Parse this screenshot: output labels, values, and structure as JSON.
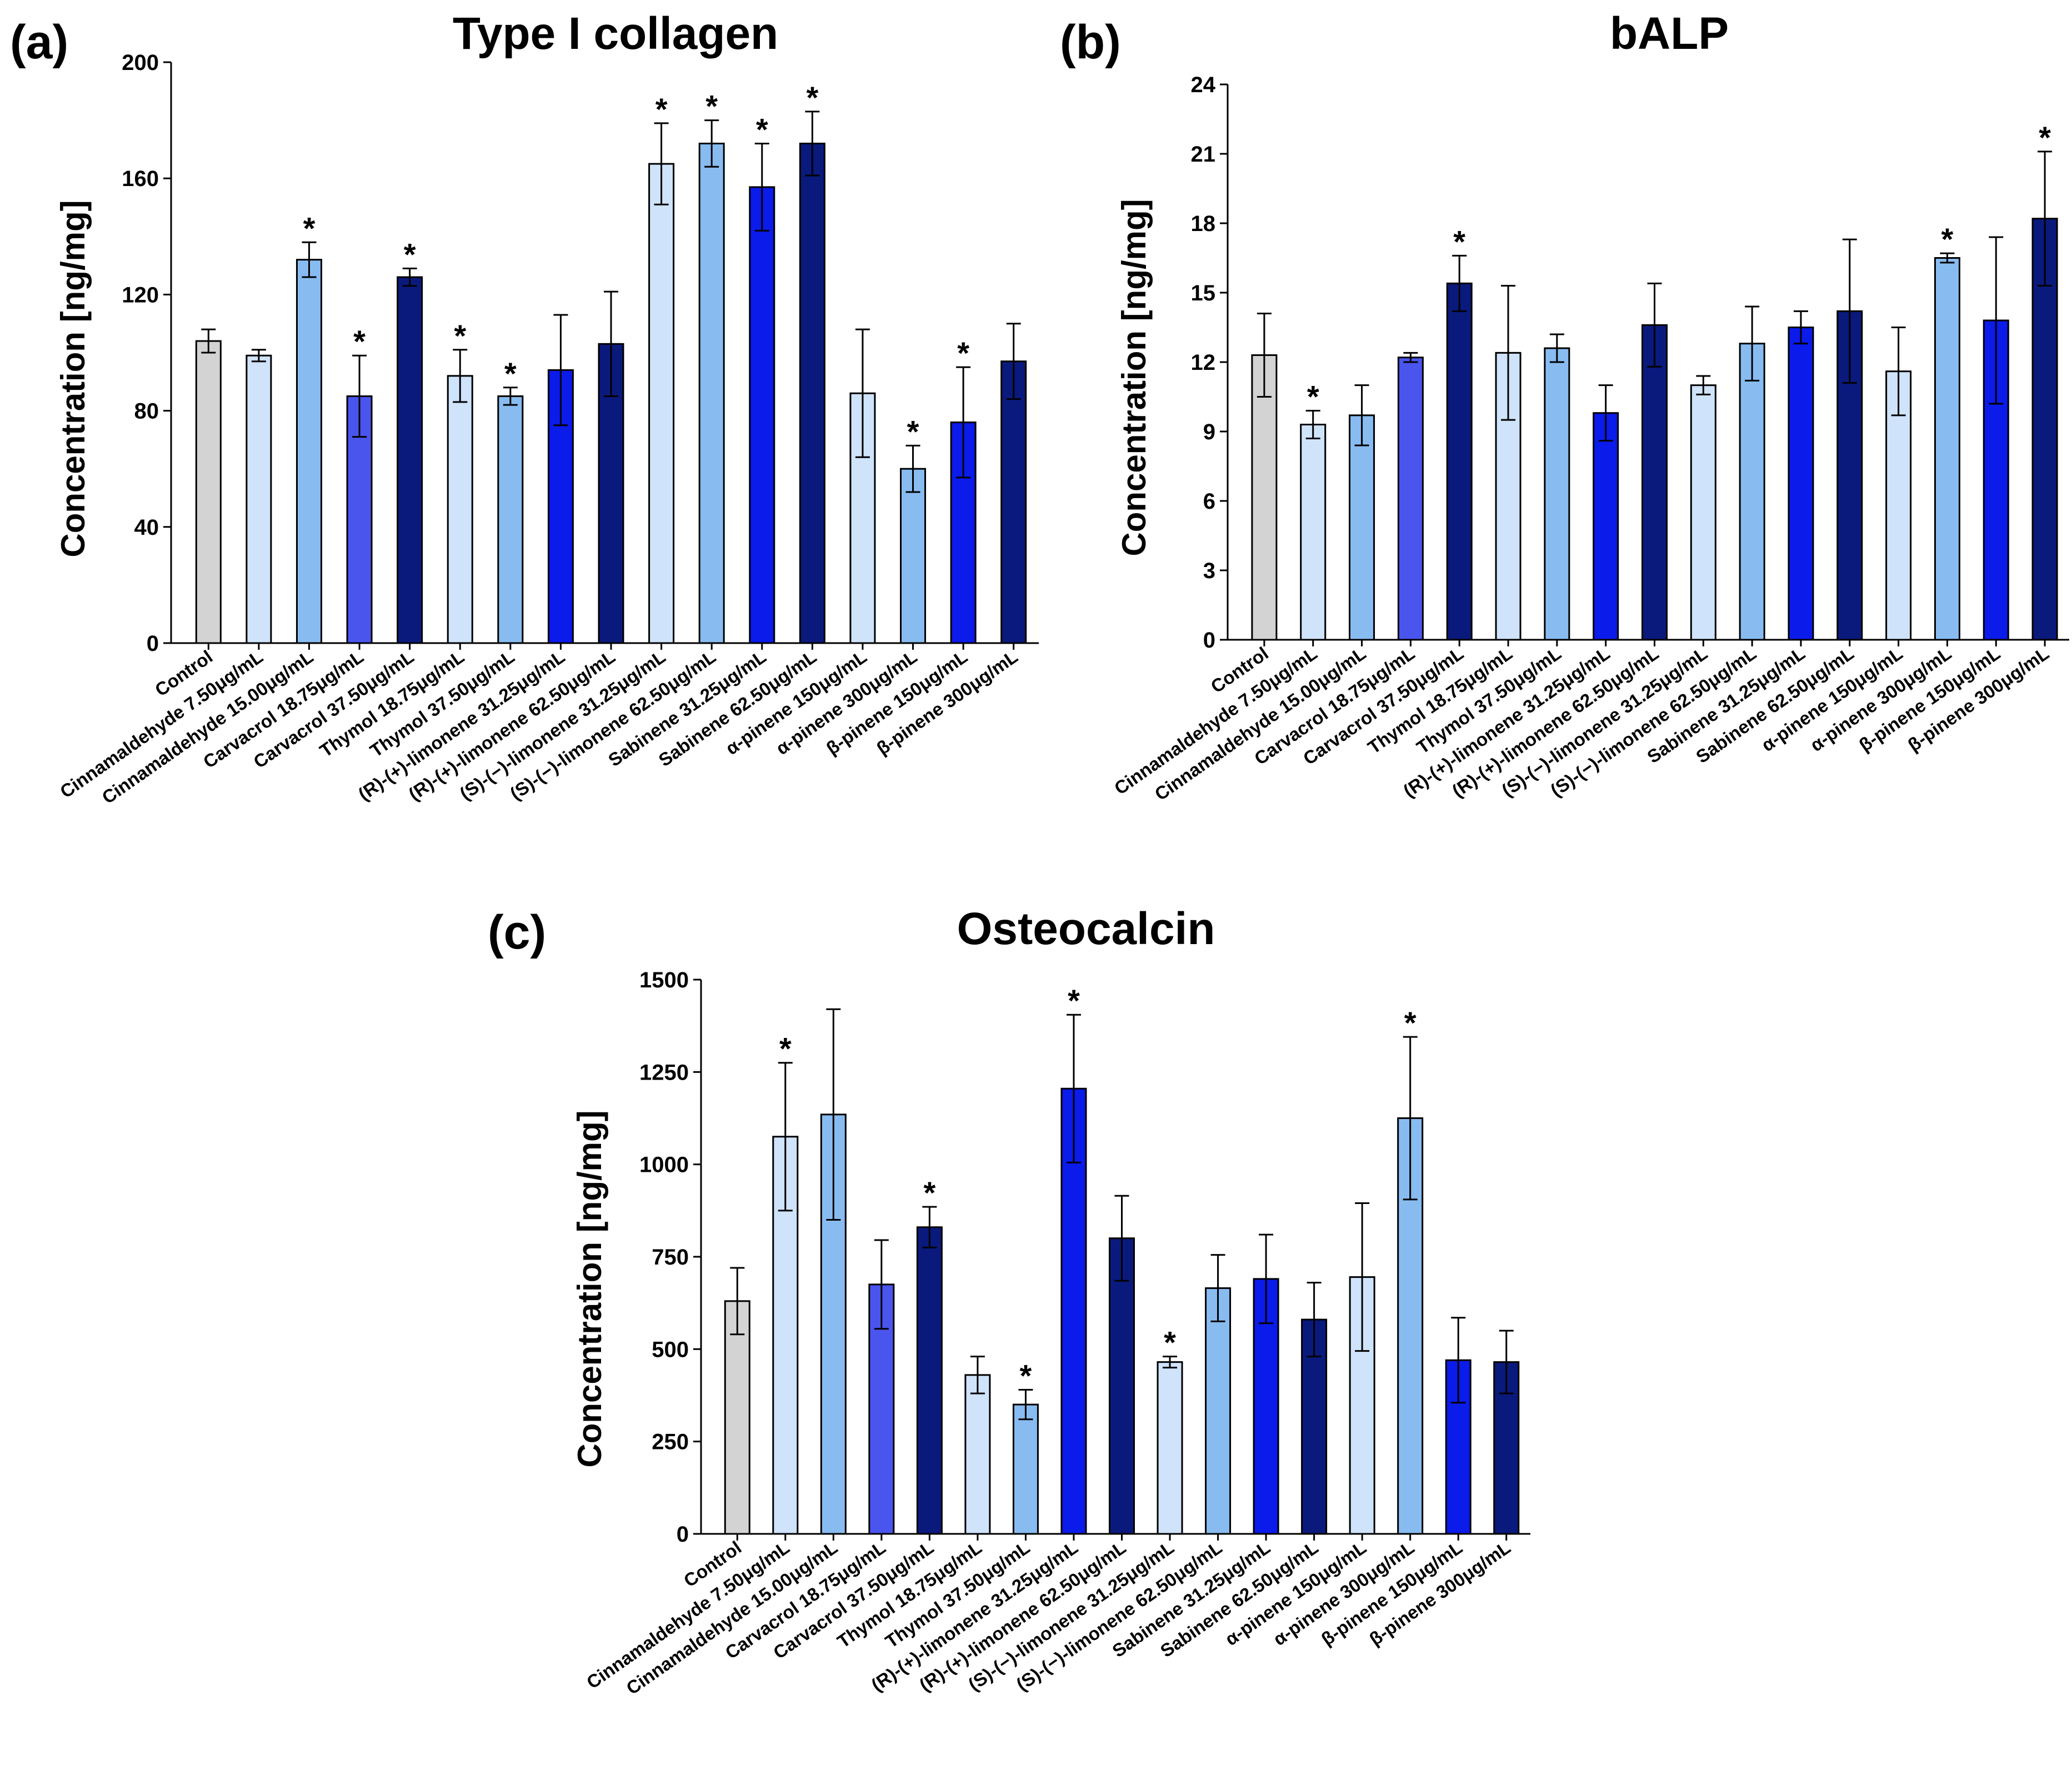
{
  "chart_data": [
    {
      "panel": "(a)",
      "type": "bar",
      "title": "Type I collagen",
      "ylabel": "Concentration [ng/mg]",
      "xlabel": "",
      "ylim": [
        0,
        200
      ],
      "yticks": [
        0,
        40,
        80,
        120,
        160,
        200
      ],
      "categories": [
        "Control",
        "Cinnamaldehyde 7.50μg/mL",
        "Cinnamaldehyde 15.00μg/mL",
        "Carvacrol 18.75μg/mL",
        "Carvacrol 37.50μg/mL",
        "Thymol 18.75μg/mL",
        "Thymol 37.50μg/mL",
        "(R)-(+)-limonene 31.25μg/mL",
        "(R)-(+)-limonene 62.50μg/mL",
        "(S)-(−)-limonene 31.25μg/mL",
        "(S)-(−)-limonene 62.50μg/mL",
        "Sabinene 31.25μg/mL",
        "Sabinene 62.50μg/mL",
        "α-pinene 150μg/mL",
        "α-pinene 300μg/mL",
        "β-pinene 150μg/mL",
        "β-pinene 300μg/mL"
      ],
      "values": [
        104,
        99,
        132,
        85,
        126,
        92,
        85,
        94,
        103,
        165,
        172,
        157,
        172,
        86,
        60,
        76,
        97
      ],
      "errors": [
        4,
        2,
        6,
        14,
        3,
        9,
        3,
        19,
        18,
        14,
        8,
        15,
        11,
        22,
        8,
        19,
        13
      ],
      "significant": [
        false,
        false,
        true,
        true,
        true,
        true,
        true,
        false,
        false,
        true,
        true,
        true,
        true,
        false,
        true,
        true,
        false
      ],
      "colors": [
        "#d3d3d3",
        "#cfe3fb",
        "#88bcf1",
        "#4a55ee",
        "#0a1a7c",
        "#cfe3fb",
        "#88bcf1",
        "#0a1bea",
        "#0a1a7c",
        "#cfe3fb",
        "#88bcf1",
        "#0a1bea",
        "#0a1a7c",
        "#cfe3fb",
        "#88bcf1",
        "#0a1bea",
        "#0a1a7c"
      ]
    },
    {
      "panel": "(b)",
      "type": "bar",
      "title": "bALP",
      "ylabel": "Concentration [ng/mg]",
      "xlabel": "",
      "ylim": [
        0,
        24
      ],
      "yticks": [
        0,
        3,
        6,
        9,
        12,
        15,
        18,
        21,
        24
      ],
      "categories": [
        "Control",
        "Cinnamaldehyde 7.50μg/mL",
        "Cinnamaldehyde 15.00μg/mL",
        "Carvacrol 18.75μg/mL",
        "Carvacrol 37.50μg/mL",
        "Thymol 18.75μg/mL",
        "Thymol 37.50μg/mL",
        "(R)-(+)-limonene 31.25μg/mL",
        "(R)-(+)-limonene 62.50μg/mL",
        "(S)-(−)-limonene 31.25μg/mL",
        "(S)-(−)-limonene 62.50μg/mL",
        "Sabinene 31.25μg/mL",
        "Sabinene 62.50μg/mL",
        "α-pinene 150μg/mL",
        "α-pinene 300μg/mL",
        "β-pinene 150μg/mL",
        "β-pinene 300μg/mL"
      ],
      "values": [
        12.3,
        9.3,
        9.7,
        12.2,
        15.4,
        12.4,
        12.6,
        9.8,
        13.6,
        11.0,
        12.8,
        13.5,
        14.2,
        11.6,
        16.5,
        13.8,
        18.2
      ],
      "errors": [
        1.8,
        0.6,
        1.3,
        0.2,
        1.2,
        2.9,
        0.6,
        1.2,
        1.8,
        0.4,
        1.6,
        0.7,
        3.1,
        1.9,
        0.2,
        3.6,
        2.9
      ],
      "significant": [
        false,
        true,
        false,
        false,
        true,
        false,
        false,
        false,
        false,
        false,
        false,
        false,
        false,
        false,
        true,
        false,
        true
      ],
      "colors": [
        "#d3d3d3",
        "#cfe3fb",
        "#88bcf1",
        "#4a55ee",
        "#0a1a7c",
        "#cfe3fb",
        "#88bcf1",
        "#0a1bea",
        "#0a1a7c",
        "#cfe3fb",
        "#88bcf1",
        "#0a1bea",
        "#0a1a7c",
        "#cfe3fb",
        "#88bcf1",
        "#0a1bea",
        "#0a1a7c"
      ]
    },
    {
      "panel": "(c)",
      "type": "bar",
      "title": "Osteocalcin",
      "ylabel": "Concentration [ng/mg]",
      "xlabel": "",
      "ylim": [
        0,
        1500
      ],
      "yticks": [
        0,
        250,
        500,
        750,
        1000,
        1250,
        1500
      ],
      "categories": [
        "Control",
        "Cinnamaldehyde 7.50μg/mL",
        "Cinnamaldehyde 15.00μg/mL",
        "Carvacrol 18.75μg/mL",
        "Carvacrol 37.50μg/mL",
        "Thymol 18.75μg/mL",
        "Thymol 37.50μg/mL",
        "(R)-(+)-limonene 31.25μg/mL",
        "(R)-(+)-limonene 62.50μg/mL",
        "(S)-(−)-limonene 31.25μg/mL",
        "(S)-(−)-limonene 62.50μg/mL",
        "Sabinene 31.25μg/mL",
        "Sabinene 62.50μg/mL",
        "α-pinene 150μg/mL",
        "α-pinene 300μg/mL",
        "β-pinene 150μg/mL",
        "β-pinene 300μg/mL"
      ],
      "values": [
        630,
        1075,
        1135,
        675,
        830,
        430,
        350,
        1205,
        800,
        465,
        665,
        690,
        580,
        695,
        1125,
        470,
        465
      ],
      "errors": [
        90,
        200,
        285,
        120,
        55,
        50,
        40,
        200,
        115,
        15,
        90,
        120,
        100,
        200,
        220,
        115,
        85
      ],
      "significant": [
        false,
        true,
        false,
        false,
        true,
        false,
        true,
        true,
        false,
        true,
        false,
        false,
        false,
        false,
        true,
        false,
        false
      ],
      "colors": [
        "#d3d3d3",
        "#cfe3fb",
        "#88bcf1",
        "#4a55ee",
        "#0a1a7c",
        "#cfe3fb",
        "#88bcf1",
        "#0a1bea",
        "#0a1a7c",
        "#cfe3fb",
        "#88bcf1",
        "#0a1bea",
        "#0a1a7c",
        "#cfe3fb",
        "#88bcf1",
        "#0a1bea",
        "#0a1a7c"
      ]
    }
  ],
  "significance_marker": "*"
}
